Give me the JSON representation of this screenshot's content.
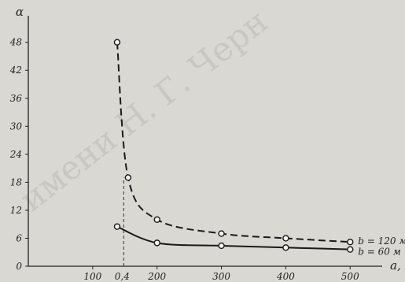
{
  "watermark": "имени Н. Г. Черн",
  "chart_data": {
    "type": "line",
    "title": "",
    "ylabel": "α",
    "xlabel": "a, м",
    "xlim": [
      0,
      540
    ],
    "ylim": [
      0,
      52
    ],
    "x_ticks": [
      100,
      200,
      300,
      400,
      500
    ],
    "y_ticks": [
      0,
      6,
      12,
      18,
      24,
      30,
      36,
      42,
      48
    ],
    "special_tick": {
      "label": "0,4",
      "x": 158
    },
    "grid": false,
    "legend": "inline-right",
    "series": [
      {
        "name": "b = 120 м",
        "style": "dashed",
        "x": [
          138,
          155,
          200,
          300,
          400,
          500
        ],
        "y": [
          48,
          19,
          10,
          7,
          6,
          5.2
        ]
      },
      {
        "name": "b = 60 м",
        "style": "solid",
        "x": [
          138,
          200,
          300,
          400,
          500
        ],
        "y": [
          8.5,
          5,
          4.4,
          4,
          3.6
        ]
      }
    ]
  }
}
